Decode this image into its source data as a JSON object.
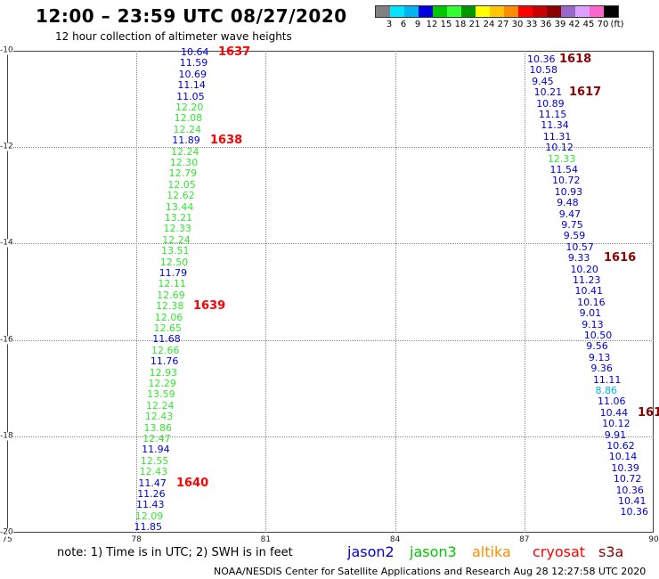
{
  "header": {
    "title": "12:00 – 23:59 UTC 08/27/2020",
    "subtitle": "12 hour collection of altimeter wave heights"
  },
  "legend": {
    "colors": [
      "#808080",
      "#00e5ff",
      "#00b4f0",
      "#0000dc",
      "#00c800",
      "#33ff33",
      "#009600",
      "#ffff00",
      "#ffc800",
      "#ff8c00",
      "#ff0000",
      "#c80000",
      "#8b0000",
      "#9966cc",
      "#dda0ff",
      "#ff66cc",
      "#000000"
    ],
    "ticks": [
      "3",
      "6",
      "9",
      "12",
      "15",
      "18",
      "21",
      "24",
      "27",
      "30",
      "33",
      "36",
      "39",
      "42",
      "45",
      "70",
      "(ft)"
    ]
  },
  "map": {
    "lat_labels": [
      "-10",
      "-12",
      "-14",
      "-16",
      "-18",
      "-20"
    ],
    "lon_labels": [
      "75",
      "78",
      "81",
      "84",
      "87",
      "90"
    ]
  },
  "colors": {
    "jason2": "#0000dc",
    "jason3": "#33e833",
    "altika": "#ff8c00",
    "cryosat": "#ff0000",
    "s3a": "#8b0000",
    "light_blue": "#00b4f0",
    "lime": "#66ff00"
  },
  "tracks": [
    {
      "name": "left",
      "readings": [
        {
          "v": "10.64",
          "c": "jason2"
        },
        {
          "v": "11.59",
          "c": "jason2"
        },
        {
          "v": "10.69",
          "c": "jason2"
        },
        {
          "v": "11.14",
          "c": "jason2"
        },
        {
          "v": "11.05",
          "c": "jason2"
        },
        {
          "v": "12.20",
          "c": "jason3"
        },
        {
          "v": "12.08",
          "c": "jason3"
        },
        {
          "v": "12.24",
          "c": "jason3"
        },
        {
          "v": "11.89",
          "c": "jason2"
        },
        {
          "v": "12.24",
          "c": "jason3"
        },
        {
          "v": "12.30",
          "c": "jason3"
        },
        {
          "v": "12.79",
          "c": "jason3"
        },
        {
          "v": "12.05",
          "c": "jason3"
        },
        {
          "v": "12.62",
          "c": "jason3"
        },
        {
          "v": "13.44",
          "c": "jason3"
        },
        {
          "v": "13.21",
          "c": "jason3"
        },
        {
          "v": "12.33",
          "c": "jason3"
        },
        {
          "v": "12.24",
          "c": "jason3"
        },
        {
          "v": "13.51",
          "c": "jason3"
        },
        {
          "v": "12.50",
          "c": "jason3"
        },
        {
          "v": "11.79",
          "c": "jason2"
        },
        {
          "v": "12.11",
          "c": "jason3"
        },
        {
          "v": "12.69",
          "c": "jason3"
        },
        {
          "v": "12.38",
          "c": "jason3"
        },
        {
          "v": "12.06",
          "c": "jason3"
        },
        {
          "v": "12.65",
          "c": "jason3"
        },
        {
          "v": "11.68",
          "c": "jason2"
        },
        {
          "v": "12.66",
          "c": "jason3"
        },
        {
          "v": "11.76",
          "c": "jason2"
        },
        {
          "v": "12.93",
          "c": "jason3"
        },
        {
          "v": "12.29",
          "c": "jason3"
        },
        {
          "v": "13.59",
          "c": "jason3"
        },
        {
          "v": "12.24",
          "c": "jason3"
        },
        {
          "v": "12.43",
          "c": "jason3"
        },
        {
          "v": "13.86",
          "c": "jason3"
        },
        {
          "v": "12.47",
          "c": "jason3"
        },
        {
          "v": "11.94",
          "c": "jason2"
        },
        {
          "v": "12.55",
          "c": "jason3"
        },
        {
          "v": "12.43",
          "c": "jason3"
        },
        {
          "v": "11.47",
          "c": "jason2"
        },
        {
          "v": "11.26",
          "c": "jason2"
        },
        {
          "v": "11.43",
          "c": "jason2"
        },
        {
          "v": "12.09",
          "c": "jason3"
        },
        {
          "v": "11.85",
          "c": "jason2"
        }
      ],
      "times": [
        {
          "t": "1637",
          "c": "cryosat",
          "row": 0
        },
        {
          "t": "1638",
          "c": "cryosat",
          "row": 8
        },
        {
          "t": "1639",
          "c": "cryosat",
          "row": 23
        },
        {
          "t": "1640",
          "c": "cryosat",
          "row": 39
        }
      ]
    },
    {
      "name": "right",
      "readings": [
        {
          "v": "10.36",
          "c": "jason2"
        },
        {
          "v": "10.58",
          "c": "jason2"
        },
        {
          "v": "9.45",
          "c": "jason2"
        },
        {
          "v": "10.21",
          "c": "jason2"
        },
        {
          "v": "10.89",
          "c": "jason2"
        },
        {
          "v": "11.15",
          "c": "jason2"
        },
        {
          "v": "11.34",
          "c": "jason2"
        },
        {
          "v": "11.31",
          "c": "jason2"
        },
        {
          "v": "10.12",
          "c": "jason2"
        },
        {
          "v": "12.33",
          "c": "jason3"
        },
        {
          "v": "11.54",
          "c": "jason2"
        },
        {
          "v": "10.72",
          "c": "jason2"
        },
        {
          "v": "10.93",
          "c": "jason2"
        },
        {
          "v": "9.48",
          "c": "jason2"
        },
        {
          "v": "9.47",
          "c": "jason2"
        },
        {
          "v": "9.75",
          "c": "jason2"
        },
        {
          "v": "9.59",
          "c": "jason2"
        },
        {
          "v": "10.57",
          "c": "jason2"
        },
        {
          "v": "9.33",
          "c": "jason2"
        },
        {
          "v": "10.20",
          "c": "jason2"
        },
        {
          "v": "11.23",
          "c": "jason2"
        },
        {
          "v": "10.41",
          "c": "jason2"
        },
        {
          "v": "10.16",
          "c": "jason2"
        },
        {
          "v": "9.01",
          "c": "jason2"
        },
        {
          "v": "9.13",
          "c": "jason2"
        },
        {
          "v": "10.50",
          "c": "jason2"
        },
        {
          "v": "9.56",
          "c": "jason2"
        },
        {
          "v": "9.13",
          "c": "jason2"
        },
        {
          "v": "9.36",
          "c": "jason2"
        },
        {
          "v": "11.11",
          "c": "jason2"
        },
        {
          "v": "8.86",
          "c": "light_blue"
        },
        {
          "v": "11.06",
          "c": "jason2"
        },
        {
          "v": "10.44",
          "c": "jason2"
        },
        {
          "v": "10.12",
          "c": "jason2"
        },
        {
          "v": "9.91",
          "c": "jason2"
        },
        {
          "v": "10.62",
          "c": "jason2"
        },
        {
          "v": "10.14",
          "c": "jason2"
        },
        {
          "v": "10.39",
          "c": "jason2"
        },
        {
          "v": "10.72",
          "c": "jason2"
        },
        {
          "v": "10.36",
          "c": "jason2"
        },
        {
          "v": "10.41",
          "c": "jason2"
        },
        {
          "v": "10.36",
          "c": "jason2"
        }
      ],
      "times": [
        {
          "t": "1618",
          "c": "s3a",
          "row": 0
        },
        {
          "t": "1617",
          "c": "s3a",
          "row": 3
        },
        {
          "t": "1616",
          "c": "s3a",
          "row": 18
        },
        {
          "t": "161",
          "c": "s3a",
          "row": 32
        }
      ]
    }
  ],
  "note": "note: 1) Time is in UTC; 2) SWH is in feet",
  "satellites": [
    {
      "label": "jason2",
      "color": "#0000dc"
    },
    {
      "label": "jason3",
      "color": "#00c800"
    },
    {
      "label": "altika",
      "color": "#ff8c00"
    },
    {
      "label": "cryosat",
      "color": "#ff0000"
    },
    {
      "label": "s3a",
      "color": "#8b0000"
    }
  ],
  "footer": "NOAA/NESDIS Center for Satellite Applications and Research    Aug 28 12:27:58 UTC 2020"
}
